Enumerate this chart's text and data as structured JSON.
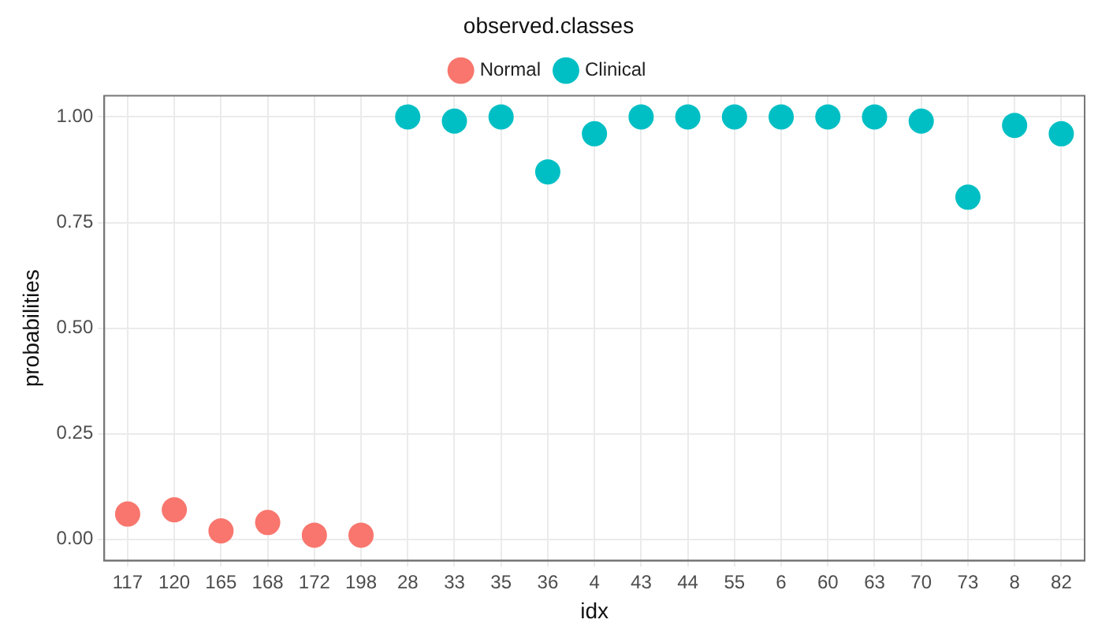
{
  "chart_data": {
    "type": "scatter",
    "xlabel": "idx",
    "ylabel": "probabilities",
    "legend_title": "observed.classes",
    "categories": [
      "117",
      "120",
      "165",
      "168",
      "172",
      "198",
      "28",
      "33",
      "35",
      "36",
      "4",
      "43",
      "44",
      "55",
      "6",
      "60",
      "63",
      "70",
      "73",
      "8",
      "82"
    ],
    "series": [
      {
        "name": "Normal",
        "color": "#f8766d",
        "x": [
          "117",
          "120",
          "165",
          "168",
          "172",
          "198"
        ],
        "values": [
          0.06,
          0.07,
          0.02,
          0.04,
          0.01,
          0.01
        ]
      },
      {
        "name": "Clinical",
        "color": "#00bfc4",
        "x": [
          "28",
          "33",
          "35",
          "36",
          "4",
          "43",
          "44",
          "55",
          "6",
          "60",
          "63",
          "70",
          "73",
          "8",
          "82"
        ],
        "values": [
          1.0,
          0.99,
          1.0,
          0.87,
          0.96,
          1.0,
          1.0,
          1.0,
          1.0,
          1.0,
          1.0,
          0.99,
          0.81,
          0.98,
          0.96
        ]
      }
    ],
    "ylim": [
      -0.05,
      1.05
    ],
    "yticks": [
      {
        "value": 0,
        "label": "0.00"
      },
      {
        "value": 0.25,
        "label": "0.25"
      },
      {
        "value": 0.5,
        "label": "0.50"
      },
      {
        "value": 0.75,
        "label": "0.75"
      },
      {
        "value": 1,
        "label": "1.00"
      }
    ],
    "grid": true,
    "legend": "top",
    "marker": "circle"
  }
}
